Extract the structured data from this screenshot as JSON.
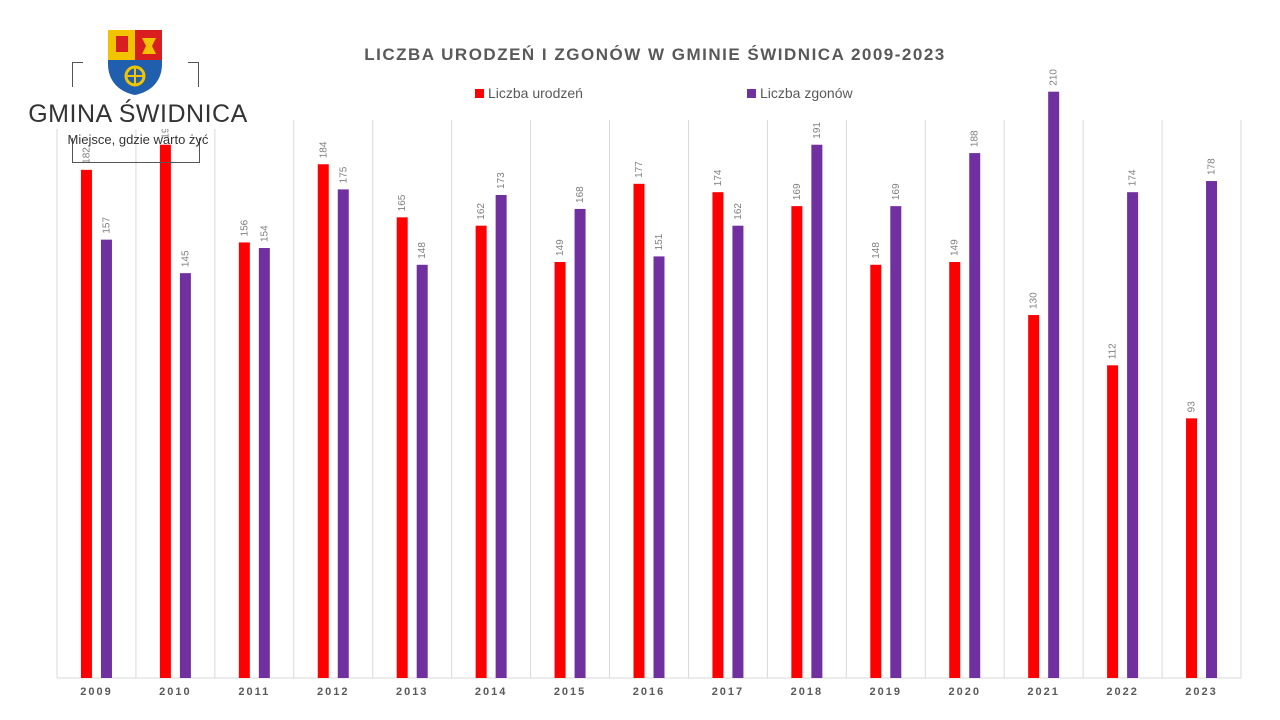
{
  "logo": {
    "name": "GMINA ŚWIDNICA",
    "tagline": "Miejsce, gdzie warto żyć"
  },
  "colors": {
    "births": "#ff0000",
    "deaths": "#7030a0",
    "grid": "#d9d9d9",
    "label": "#7f7f7f",
    "title": "#595959"
  },
  "chart_data": {
    "type": "bar",
    "title": "LICZBA URODZEŃ I ZGONÓW W GMINIE ŚWIDNICA 2009-2023",
    "xlabel": "",
    "ylabel": "",
    "ylim": [
      0,
      250
    ],
    "grid": "vertical separators only",
    "legend_position": "top",
    "categories": [
      "2009",
      "2010",
      "2011",
      "2012",
      "2013",
      "2014",
      "2015",
      "2016",
      "2017",
      "2018",
      "2019",
      "2020",
      "2021",
      "2022",
      "2023"
    ],
    "series": [
      {
        "name": "Liczba urodzeń",
        "color": "#ff0000",
        "values": [
          182,
          191,
          156,
          184,
          165,
          162,
          149,
          177,
          174,
          169,
          148,
          149,
          130,
          112,
          93
        ]
      },
      {
        "name": "Liczba zgonów",
        "color": "#7030a0",
        "values": [
          157,
          145,
          154,
          175,
          148,
          173,
          168,
          151,
          162,
          191,
          169,
          188,
          210,
          174,
          178
        ]
      }
    ]
  }
}
